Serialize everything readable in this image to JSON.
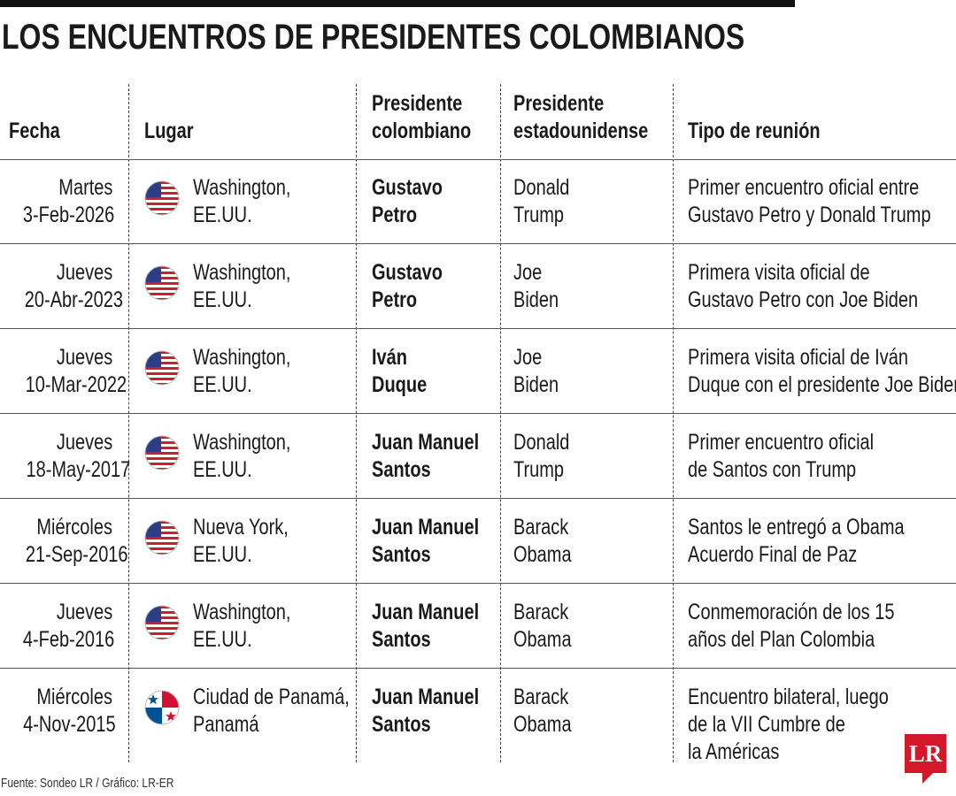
{
  "title": "LOS ENCUENTROS DE PRESIDENTES COLOMBIANOS",
  "columns": [
    [
      "Fecha"
    ],
    [
      "Lugar"
    ],
    [
      "Presidente",
      "colombiano"
    ],
    [
      "Presidente",
      "estadounidense"
    ],
    [
      "Tipo de reunión"
    ]
  ],
  "rows": [
    {
      "fecha": [
        "Martes",
        "3-Feb-2026"
      ],
      "lugar": [
        "Washington,",
        "EE.UU."
      ],
      "presidente_colombiano": [
        "Gustavo",
        "Petro"
      ],
      "presidente_estadounidense": [
        "Donald",
        "Trump"
      ],
      "tipo": [
        "Primer encuentro oficial entre",
        "Gustavo Petro y Donald Trump"
      ]
    },
    {
      "fecha": [
        "Jueves",
        "20-Abr-2023"
      ],
      "lugar": [
        "Washington,",
        "EE.UU."
      ],
      "presidente_colombiano": [
        "Gustavo",
        "Petro"
      ],
      "presidente_estadounidense": [
        "Joe",
        "Biden"
      ],
      "tipo": [
        "Primera visita oficial de",
        "Gustavo Petro con Joe Biden"
      ]
    },
    {
      "fecha": [
        "Jueves",
        "10-Mar-2022"
      ],
      "lugar": [
        "Washington,",
        "EE.UU."
      ],
      "presidente_colombiano": [
        "Iván",
        "Duque"
      ],
      "presidente_estadounidense": [
        "Joe",
        "Biden"
      ],
      "tipo": [
        "Primera visita oficial de Iván",
        "Duque con el presidente Joe Biden"
      ]
    },
    {
      "fecha": [
        "Jueves",
        "18-May-2017"
      ],
      "lugar": [
        "Washington,",
        "EE.UU."
      ],
      "presidente_colombiano": [
        "Juan Manuel",
        "Santos"
      ],
      "presidente_estadounidense": [
        "Donald",
        "Trump"
      ],
      "tipo": [
        "Primer encuentro oficial",
        "de Santos con Trump"
      ]
    },
    {
      "fecha": [
        "Miércoles",
        "21-Sep-2016"
      ],
      "lugar": [
        "Nueva York,",
        "EE.UU."
      ],
      "presidente_colombiano": [
        "Juan Manuel",
        "Santos"
      ],
      "presidente_estadounidense": [
        "Barack",
        "Obama"
      ],
      "tipo": [
        "Santos le entregó a Obama",
        "Acuerdo Final de Paz"
      ]
    },
    {
      "fecha": [
        "Jueves",
        "4-Feb-2016"
      ],
      "lugar": [
        "Washington,",
        "EE.UU."
      ],
      "presidente_colombiano": [
        "Juan Manuel",
        "Santos"
      ],
      "presidente_estadounidense": [
        "Barack",
        "Obama"
      ],
      "tipo": [
        "Conmemoración de los 15",
        "años del Plan Colombia"
      ]
    },
    {
      "fecha": [
        "Miércoles",
        "4-Nov-2015"
      ],
      "lugar": [
        "Ciudad de Panamá,",
        "Panamá"
      ],
      "presidente_colombiano": [
        "Juan Manuel",
        "Santos"
      ],
      "presidente_estadounidense": [
        "Barack",
        "Obama"
      ],
      "tipo": [
        "Encuentro bilateral, luego",
        "de la VII Cumbre de",
        "la Américas"
      ]
    }
  ],
  "source": "Fuente: Sondeo LR / Gráfico: LR-ER",
  "logo": "LR"
}
